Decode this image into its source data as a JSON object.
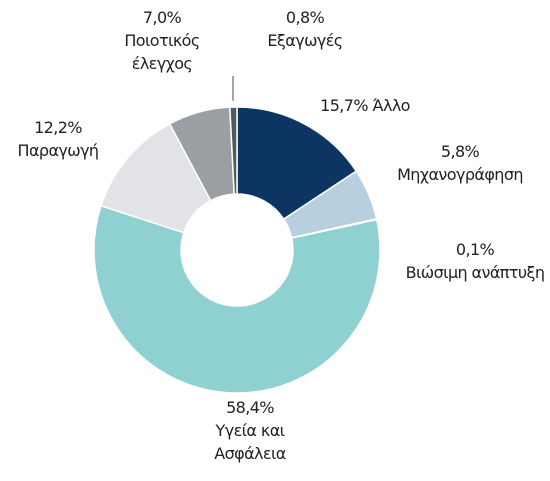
{
  "chart_data": {
    "type": "donut",
    "categories": [
      "Άλλο",
      "Μηχανογράφηση",
      "Βιώσιμη ανάπτυξη",
      "Υγεία και Ασφάλεια",
      "Παραγωγή",
      "Ποιοτικός έλεγχος",
      "Εξαγωγές"
    ],
    "values": [
      15.7,
      5.8,
      0.1,
      58.4,
      12.2,
      7.0,
      0.8
    ],
    "value_labels": [
      "15,7%",
      "5,8%",
      "0,1%",
      "58,4%",
      "12,2%",
      "7,0%",
      "0,8%"
    ],
    "colors": [
      "#0d3563",
      "#b8cfe0",
      "#a9d8d8",
      "#8fd0d0",
      "#e2e3e6",
      "#9b9ea3",
      "#55595f"
    ]
  }
}
